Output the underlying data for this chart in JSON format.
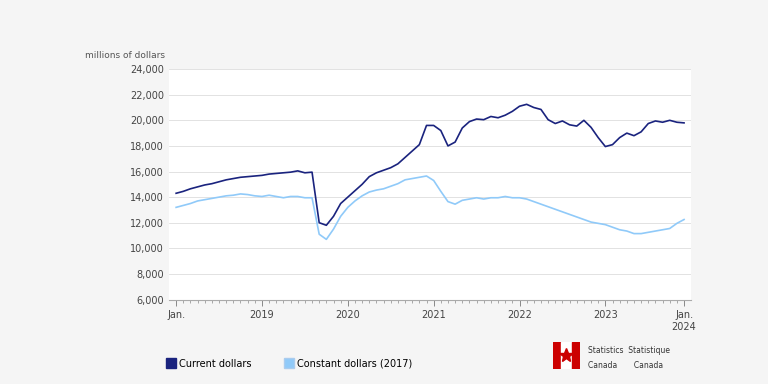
{
  "ylabel": "millions of dollars",
  "ylim": [
    6000,
    24000
  ],
  "yticks": [
    6000,
    8000,
    10000,
    12000,
    14000,
    16000,
    18000,
    20000,
    22000,
    24000
  ],
  "bg_color": "#f5f5f5",
  "plot_bg_color": "#ffffff",
  "grid_color": "#dddddd",
  "line1_color": "#1a237e",
  "line2_color": "#90caf9",
  "legend1": "Current dollars",
  "legend2": "Constant dollars (2017)",
  "current_dollars": [
    14300,
    14450,
    14650,
    14800,
    14950,
    15050,
    15200,
    15350,
    15450,
    15550,
    15600,
    15650,
    15700,
    15800,
    15850,
    15900,
    15950,
    16050,
    15900,
    15950,
    12000,
    11800,
    12500,
    13500,
    14000,
    14500,
    15000,
    15600,
    15900,
    16100,
    16300,
    16600,
    17100,
    17600,
    18100,
    19600,
    19600,
    19200,
    18000,
    18300,
    19400,
    19900,
    20100,
    20050,
    20300,
    20200,
    20400,
    20700,
    21100,
    21250,
    21000,
    20850,
    20050,
    19750,
    19950,
    19650,
    19550,
    20000,
    19450,
    18650,
    17950,
    18100,
    18650,
    19000,
    18800,
    19100,
    19750,
    19950,
    19850,
    20000,
    19850,
    19800
  ],
  "constant_dollars": [
    13200,
    13350,
    13500,
    13700,
    13800,
    13900,
    14000,
    14100,
    14150,
    14250,
    14200,
    14100,
    14050,
    14150,
    14050,
    13950,
    14050,
    14050,
    13950,
    13950,
    11100,
    10700,
    11500,
    12500,
    13200,
    13700,
    14100,
    14400,
    14550,
    14650,
    14850,
    15050,
    15350,
    15450,
    15550,
    15650,
    15300,
    14450,
    13650,
    13450,
    13750,
    13850,
    13950,
    13850,
    13950,
    13950,
    14050,
    13950,
    13950,
    13850,
    13650,
    13450,
    13250,
    13050,
    12850,
    12650,
    12450,
    12250,
    12050,
    11950,
    11850,
    11650,
    11450,
    11350,
    11150,
    11150,
    11250,
    11350,
    11450,
    11550,
    11950,
    12250
  ],
  "n_months": 72,
  "xtick_positions": [
    0,
    12,
    24,
    36,
    48,
    60,
    71
  ],
  "xtick_labels": [
    "Jan.",
    "2019",
    "2020",
    "2021",
    "2022",
    "2023",
    "Jan.\n2024"
  ]
}
